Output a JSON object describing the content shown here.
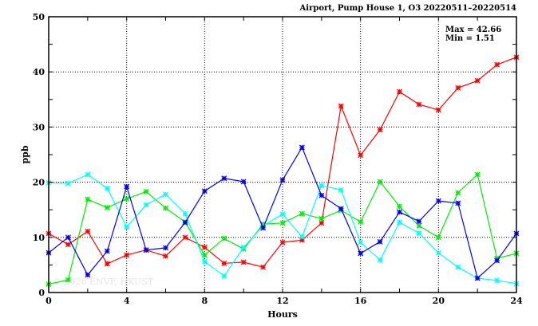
{
  "chart_data": {
    "type": "line",
    "title": "Airport, Pump House 1, O3 20220511–20220514",
    "xlabel": "Hours",
    "ylabel": "ppb",
    "xlim": [
      0,
      24
    ],
    "ylim": [
      0,
      50
    ],
    "xticks": [
      0,
      4,
      8,
      12,
      16,
      20,
      24
    ],
    "yticks": [
      0,
      10,
      20,
      30,
      40,
      50
    ],
    "grid": true,
    "annotations": {
      "max_label": "Max = 42.66",
      "min_label": "Min =  1.51"
    },
    "watermark": "© 2026  ENVF, HKUST",
    "x": [
      0,
      1,
      2,
      3,
      4,
      5,
      6,
      7,
      8,
      9,
      10,
      11,
      12,
      13,
      14,
      15,
      16,
      17,
      18,
      19,
      20,
      21,
      22,
      23,
      24
    ],
    "series": [
      {
        "name": "red",
        "color": "#ff0000",
        "values": [
          10.7,
          8.7,
          11.1,
          5.2,
          6.8,
          7.7,
          6.6,
          10.0,
          8.2,
          5.3,
          5.5,
          4.6,
          9.1,
          9.5,
          12.6,
          33.8,
          24.9,
          29.5,
          36.4,
          34.1,
          33.1,
          37.1,
          38.4,
          41.3,
          42.66
        ]
      },
      {
        "name": "green",
        "color": "#00ee00",
        "values": [
          1.51,
          2.3,
          16.9,
          15.4,
          17.0,
          18.3,
          15.3,
          12.8,
          6.8,
          9.8,
          7.9,
          12.4,
          12.6,
          14.3,
          13.4,
          14.9,
          12.8,
          20.1,
          15.6,
          12.1,
          10.0,
          18.1,
          21.4,
          6.2,
          7.1
        ]
      },
      {
        "name": "cyan",
        "color": "#00ffff",
        "values": [
          19.9,
          19.8,
          21.4,
          18.9,
          11.9,
          15.9,
          17.8,
          14.3,
          5.6,
          3.0,
          8.2,
          12.1,
          14.2,
          10.1,
          19.4,
          18.6,
          9.1,
          5.9,
          12.7,
          10.8,
          7.2,
          4.6,
          2.6,
          2.2,
          1.6
        ]
      },
      {
        "name": "blue",
        "color": "#0000ee",
        "values": [
          7.2,
          10.0,
          3.2,
          7.5,
          19.2,
          7.7,
          8.1,
          12.7,
          18.4,
          20.7,
          20.1,
          11.7,
          20.4,
          26.3,
          17.6,
          15.2,
          7.1,
          9.2,
          14.6,
          12.9,
          16.6,
          16.2,
          2.6,
          5.8,
          10.7
        ]
      }
    ]
  }
}
